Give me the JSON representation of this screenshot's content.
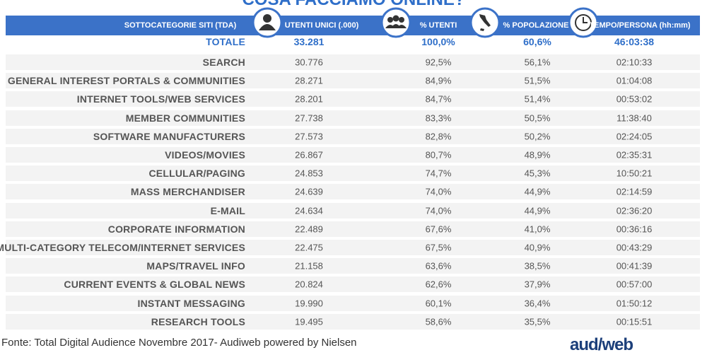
{
  "title": "COSA FACCIAMO ONLINE?",
  "table": {
    "header": [
      "SOTTOCATEGORIE SITI  (TDA)",
      "UTENTI UNICI (.000)",
      "% UTENTI",
      "% POPOLAZIONE",
      "TEMPO/PERSONA (hh:mm)"
    ],
    "total": [
      "TOTALE",
      "33.281",
      "100,0%",
      "60,6%",
      "46:03:38"
    ],
    "rows": [
      [
        "SEARCH",
        "30.776",
        "92,5%",
        "56,1%",
        "02:10:33"
      ],
      [
        "GENERAL INTEREST PORTALS & COMMUNITIES",
        "28.271",
        "84,9%",
        "51,5%",
        "01:04:08"
      ],
      [
        "INTERNET TOOLS/WEB SERVICES",
        "28.201",
        "84,7%",
        "51,4%",
        "00:53:02"
      ],
      [
        "MEMBER COMMUNITIES",
        "27.738",
        "83,3%",
        "50,5%",
        "11:38:40"
      ],
      [
        "SOFTWARE MANUFACTURERS",
        "27.573",
        "82,8%",
        "50,2%",
        "02:24:05"
      ],
      [
        "VIDEOS/MOVIES",
        "26.867",
        "80,7%",
        "48,9%",
        "02:35:31"
      ],
      [
        "CELLULAR/PAGING",
        "24.853",
        "74,7%",
        "45,3%",
        "10:50:21"
      ],
      [
        "MASS MERCHANDISER",
        "24.639",
        "74,0%",
        "44,9%",
        "02:14:59"
      ],
      [
        "E-MAIL",
        "24.634",
        "74,0%",
        "44,9%",
        "02:36:20"
      ],
      [
        "CORPORATE INFORMATION",
        "22.489",
        "67,6%",
        "41,0%",
        "00:36:16"
      ],
      [
        "MULTI-CATEGORY TELECOM/INTERNET SERVICES",
        "22.475",
        "67,5%",
        "40,9%",
        "00:43:29"
      ],
      [
        "MAPS/TRAVEL INFO",
        "21.158",
        "63,6%",
        "38,5%",
        "00:41:39"
      ],
      [
        "CURRENT EVENTS & GLOBAL NEWS",
        "20.824",
        "62,6%",
        "37,9%",
        "00:57:00"
      ],
      [
        "INSTANT MESSAGING",
        "19.990",
        "60,1%",
        "36,4%",
        "01:50:12"
      ],
      [
        "RESEARCH TOOLS",
        "19.495",
        "58,6%",
        "35,5%",
        "00:15:51"
      ]
    ]
  },
  "footer": {
    "source": "Fonte: Total Digital Audience Novembre 2017- Audiweb powered by Nielsen",
    "logo": "aud/web"
  }
}
